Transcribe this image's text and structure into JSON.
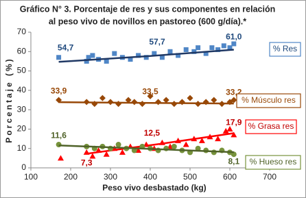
{
  "chart_data": {
    "type": "scatter",
    "title": [
      "Gráfico N° 3. Porcentaje de res y sus componentes en relación",
      "al peso vivo de novillos en pastoreo (600 g/día).*"
    ],
    "x_label": "Peso vivo desbastado (kg)",
    "y_label": "Porcentaje (%)",
    "xlim": [
      100,
      700
    ],
    "xticks": [
      100,
      200,
      300,
      400,
      500,
      600,
      700
    ],
    "ylim": [
      0,
      70
    ],
    "yticks": [
      0,
      10,
      20,
      30,
      40,
      50,
      60,
      70
    ],
    "series": [
      {
        "name": "% Res",
        "color": "#4f86c6",
        "marker": "square",
        "x": [
          170,
          240,
          245,
          255,
          270,
          290,
          310,
          330,
          350,
          370,
          390,
          410,
          430,
          450,
          470,
          490,
          510,
          520,
          540,
          555,
          570,
          585,
          600,
          610
        ],
        "values": [
          57,
          55,
          57,
          58,
          56,
          55,
          59,
          57,
          56,
          58,
          57,
          59,
          57,
          60,
          58,
          61,
          60,
          62,
          59,
          62,
          61,
          63,
          62,
          64
        ],
        "trend": {
          "color": "#1f3864",
          "x": [
            170,
            400,
            610
          ],
          "values": [
            54.7,
            57.7,
            61.0
          ],
          "value_labels": [
            "54,7",
            "57,7",
            "61,0"
          ]
        }
      },
      {
        "name": "% Músculo res",
        "color": "#984807",
        "marker": "diamond",
        "x": [
          170,
          240,
          260,
          280,
          300,
          320,
          345,
          360,
          380,
          400,
          420,
          440,
          460,
          480,
          500,
          520,
          540,
          560,
          580,
          600,
          610
        ],
        "values": [
          35,
          34,
          33,
          36,
          34,
          33,
          35,
          34,
          33,
          37,
          34,
          35,
          33,
          34,
          36,
          33,
          34,
          35,
          33,
          34,
          35
        ],
        "trend": {
          "color": "#984807",
          "x": [
            170,
            400,
            610
          ],
          "values": [
            33.9,
            33.5,
            33.2
          ],
          "value_labels": [
            "33,9",
            "33,5",
            "33,2"
          ]
        }
      },
      {
        "name": "% Grasa res",
        "color": "#ff0000",
        "marker": "triangle",
        "x": [
          175,
          240,
          255,
          270,
          290,
          310,
          330,
          350,
          370,
          390,
          410,
          430,
          450,
          470,
          490,
          510,
          530,
          550,
          570,
          590,
          600,
          610
        ],
        "values": [
          5,
          8,
          6,
          9,
          7,
          10,
          8,
          11,
          9,
          12,
          10,
          13,
          11,
          14,
          12,
          15,
          14,
          16,
          15,
          19,
          20,
          17
        ],
        "trend": {
          "color": "#ff0000",
          "x": [
            240,
            430,
            610
          ],
          "values": [
            7.3,
            12.5,
            17.9
          ],
          "value_labels": [
            "7,3",
            "12,5",
            "17,9"
          ]
        }
      },
      {
        "name": "% Hueso res",
        "color": "#77933c",
        "marker": "circle",
        "x": [
          170,
          240,
          260,
          280,
          300,
          320,
          340,
          360,
          380,
          400,
          420,
          440,
          460,
          480,
          500,
          520,
          540,
          560,
          580,
          600,
          610
        ],
        "values": [
          12,
          11,
          10,
          11,
          10,
          12,
          10,
          9,
          11,
          10,
          9,
          10,
          11,
          9,
          8,
          10,
          9,
          8,
          9,
          8,
          7
        ],
        "trend": {
          "color": "#4f6228",
          "x": [
            170,
            610
          ],
          "values": [
            11.6,
            8.1
          ],
          "value_labels": [
            "11,6",
            "8,1"
          ]
        }
      }
    ]
  }
}
